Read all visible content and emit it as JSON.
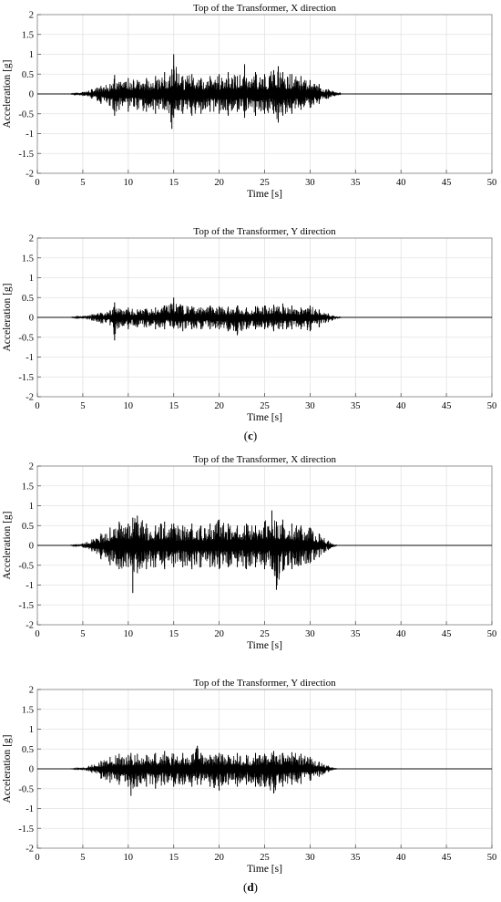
{
  "panel_labels": [
    "(c)",
    "(d)"
  ],
  "chart_data": [
    {
      "type": "line",
      "title": "Top of the Transformer, X direction",
      "xlabel": "Time [s]",
      "ylabel": "Acceleration [g]",
      "xlim": [
        0,
        50
      ],
      "ylim": [
        -2,
        2
      ],
      "xticks": [
        0,
        5,
        10,
        15,
        20,
        25,
        30,
        35,
        40,
        45,
        50
      ],
      "yticks": [
        -2,
        -1.5,
        -1,
        -0.5,
        0,
        0.5,
        1,
        1.5,
        2
      ],
      "grid": true,
      "series": [
        {
          "color": "#000000",
          "x": [
            0,
            3.5,
            5,
            6,
            7,
            8,
            8.5,
            9,
            10,
            11,
            12,
            13,
            14,
            14.8,
            15,
            16,
            17,
            18,
            19,
            20,
            21,
            22,
            22.8,
            23,
            24,
            25,
            26,
            26.5,
            27,
            28,
            29,
            30,
            31,
            32,
            33.5,
            50
          ],
          "y_upper": [
            0,
            0,
            0.05,
            0.12,
            0.2,
            0.25,
            0.48,
            0.3,
            0.4,
            0.35,
            0.4,
            0.45,
            0.55,
            0.62,
            1.0,
            0.45,
            0.5,
            0.4,
            0.45,
            0.5,
            0.55,
            0.45,
            0.75,
            0.4,
            0.55,
            0.5,
            0.6,
            0.7,
            0.55,
            0.5,
            0.45,
            0.35,
            0.25,
            0.12,
            0,
            0
          ],
          "y_lower": [
            0,
            0,
            -0.05,
            -0.12,
            -0.25,
            -0.3,
            -0.55,
            -0.4,
            -0.45,
            -0.4,
            -0.45,
            -0.5,
            -0.4,
            -0.88,
            -0.6,
            -0.5,
            -0.55,
            -0.5,
            -0.45,
            -0.5,
            -0.55,
            -0.45,
            -0.6,
            -0.4,
            -0.55,
            -0.5,
            -0.5,
            -0.72,
            -0.55,
            -0.5,
            -0.4,
            -0.35,
            -0.25,
            -0.12,
            0,
            0
          ]
        }
      ]
    },
    {
      "type": "line",
      "title": "Top of the Transformer, Y direction",
      "xlabel": "Time [s]",
      "ylabel": "Acceleration [g]",
      "xlim": [
        0,
        50
      ],
      "ylim": [
        -2,
        2
      ],
      "xticks": [
        0,
        5,
        10,
        15,
        20,
        25,
        30,
        35,
        40,
        45,
        50
      ],
      "yticks": [
        -2,
        -1.5,
        -1,
        -0.5,
        0,
        0.5,
        1,
        1.5,
        2
      ],
      "grid": true,
      "series": [
        {
          "color": "#000000",
          "x": [
            0,
            3.5,
            5,
            6,
            7,
            8,
            8.5,
            9,
            10,
            11,
            12,
            13,
            14,
            15,
            16,
            17,
            18,
            19,
            20,
            21,
            22,
            23,
            24,
            25,
            26,
            27,
            28,
            29,
            30,
            31,
            32,
            33.5,
            50
          ],
          "y_upper": [
            0,
            0,
            0.03,
            0.08,
            0.12,
            0.18,
            0.38,
            0.22,
            0.25,
            0.2,
            0.22,
            0.25,
            0.3,
            0.5,
            0.3,
            0.28,
            0.25,
            0.3,
            0.28,
            0.27,
            0.3,
            0.25,
            0.28,
            0.3,
            0.32,
            0.35,
            0.3,
            0.25,
            0.3,
            0.2,
            0.1,
            0,
            0
          ],
          "y_lower": [
            0,
            0,
            -0.03,
            -0.08,
            -0.15,
            -0.2,
            -0.58,
            -0.25,
            -0.3,
            -0.25,
            -0.25,
            -0.3,
            -0.3,
            -0.28,
            -0.35,
            -0.3,
            -0.3,
            -0.3,
            -0.3,
            -0.35,
            -0.45,
            -0.3,
            -0.3,
            -0.3,
            -0.35,
            -0.3,
            -0.3,
            -0.3,
            -0.35,
            -0.25,
            -0.12,
            0,
            0
          ]
        }
      ]
    },
    {
      "type": "line",
      "title": "Top of the Transformer, X direction",
      "xlabel": "Time [s]",
      "ylabel": "Acceleration [g]",
      "xlim": [
        0,
        50
      ],
      "ylim": [
        -2,
        2
      ],
      "xticks": [
        0,
        5,
        10,
        15,
        20,
        25,
        30,
        35,
        40,
        45,
        50
      ],
      "yticks": [
        -2,
        -1.5,
        -1,
        -0.5,
        0,
        0.5,
        1,
        1.5,
        2
      ],
      "grid": true,
      "series": [
        {
          "color": "#000000",
          "x": [
            0,
            3.5,
            5,
            6,
            7,
            8,
            9,
            10,
            10.5,
            11,
            12,
            13,
            14,
            15,
            16,
            17,
            18,
            19,
            20,
            21,
            22,
            23,
            24,
            25,
            25.8,
            26.3,
            27,
            28,
            29,
            30,
            31,
            32,
            33,
            50
          ],
          "y_upper": [
            0,
            0,
            0.05,
            0.15,
            0.3,
            0.45,
            0.6,
            0.55,
            0.7,
            0.75,
            0.55,
            0.5,
            0.6,
            0.55,
            0.5,
            0.55,
            0.5,
            0.55,
            0.65,
            0.55,
            0.5,
            0.55,
            0.5,
            0.6,
            0.88,
            0.6,
            0.65,
            0.55,
            0.5,
            0.45,
            0.3,
            0.12,
            0,
            0
          ],
          "y_lower": [
            0,
            0,
            -0.05,
            -0.15,
            -0.35,
            -0.5,
            -0.6,
            -0.55,
            -1.2,
            -0.7,
            -0.6,
            -0.55,
            -0.6,
            -0.55,
            -0.55,
            -0.6,
            -0.55,
            -0.55,
            -0.6,
            -0.55,
            -0.55,
            -0.6,
            -0.55,
            -0.6,
            -0.6,
            -1.12,
            -0.65,
            -0.6,
            -0.5,
            -0.45,
            -0.3,
            -0.12,
            0,
            0
          ]
        }
      ]
    },
    {
      "type": "line",
      "title": "Top of the Transformer, Y direction",
      "xlabel": "Time [s]",
      "ylabel": "Acceleration [g]",
      "xlim": [
        0,
        50
      ],
      "ylim": [
        -2,
        2
      ],
      "xticks": [
        0,
        5,
        10,
        15,
        20,
        25,
        30,
        35,
        40,
        45,
        50
      ],
      "yticks": [
        -2,
        -1.5,
        -1,
        -0.5,
        0,
        0.5,
        1,
        1.5,
        2
      ],
      "grid": true,
      "series": [
        {
          "color": "#000000",
          "x": [
            0,
            3.5,
            5,
            6,
            7,
            8,
            9,
            10,
            10.3,
            11,
            12,
            13,
            14,
            15,
            16,
            17,
            17.6,
            18,
            19,
            20,
            21,
            22,
            23,
            24,
            25,
            26,
            27,
            28,
            29,
            30,
            31,
            32,
            33,
            50
          ],
          "y_upper": [
            0,
            0,
            0.03,
            0.1,
            0.2,
            0.3,
            0.38,
            0.35,
            0.4,
            0.38,
            0.35,
            0.4,
            0.45,
            0.38,
            0.4,
            0.35,
            0.58,
            0.4,
            0.35,
            0.4,
            0.35,
            0.4,
            0.35,
            0.4,
            0.38,
            0.45,
            0.4,
            0.42,
            0.38,
            0.3,
            0.18,
            0.08,
            0,
            0
          ],
          "y_lower": [
            0,
            0,
            -0.03,
            -0.1,
            -0.25,
            -0.35,
            -0.4,
            -0.45,
            -0.68,
            -0.45,
            -0.45,
            -0.5,
            -0.4,
            -0.45,
            -0.4,
            -0.45,
            -0.4,
            -0.4,
            -0.45,
            -0.55,
            -0.4,
            -0.45,
            -0.4,
            -0.45,
            -0.45,
            -0.62,
            -0.45,
            -0.4,
            -0.38,
            -0.3,
            -0.2,
            -0.08,
            0,
            0
          ]
        }
      ]
    }
  ]
}
